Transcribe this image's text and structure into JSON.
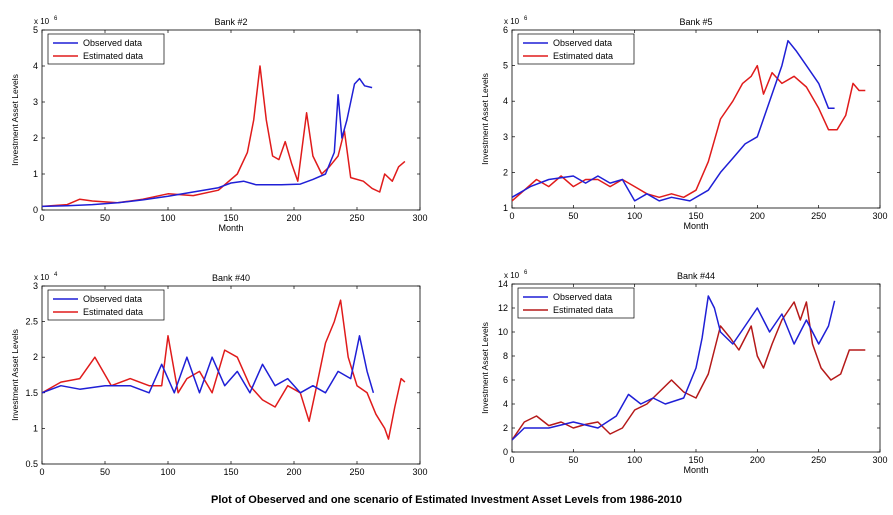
{
  "figure_caption": "Plot of Obeserved and one scenario of Estimated Investment Asset Levels from 1986-2010",
  "colors": {
    "observed": "#1f1fd6",
    "estimated": "#e01b1b",
    "axes": "#000000"
  },
  "chart_data": [
    {
      "type": "line",
      "title": "Bank #2",
      "xlabel": "Month",
      "ylabel": "Investment Asset Levels",
      "exponent_label": "x 10",
      "exponent_power": "6",
      "xlim": [
        0,
        300
      ],
      "ylim": [
        0,
        5
      ],
      "xticks": [
        0,
        50,
        100,
        150,
        200,
        250,
        300
      ],
      "yticks": [
        0,
        1,
        2,
        3,
        4,
        5
      ],
      "legend": "top-left",
      "series": [
        {
          "name": "Observed data",
          "color": "#1f1fd6",
          "points": [
            [
              0,
              0.1
            ],
            [
              20,
              0.12
            ],
            [
              40,
              0.15
            ],
            [
              60,
              0.2
            ],
            [
              80,
              0.28
            ],
            [
              100,
              0.38
            ],
            [
              120,
              0.5
            ],
            [
              140,
              0.62
            ],
            [
              150,
              0.75
            ],
            [
              160,
              0.8
            ],
            [
              170,
              0.7
            ],
            [
              190,
              0.7
            ],
            [
              205,
              0.72
            ],
            [
              215,
              0.85
            ],
            [
              225,
              1.0
            ],
            [
              232,
              1.6
            ],
            [
              235,
              3.2
            ],
            [
              238,
              2.0
            ],
            [
              242,
              2.5
            ],
            [
              248,
              3.5
            ],
            [
              252,
              3.65
            ],
            [
              256,
              3.45
            ],
            [
              262,
              3.4
            ]
          ]
        },
        {
          "name": "Estimated data",
          "color": "#e01b1b",
          "points": [
            [
              0,
              0.1
            ],
            [
              20,
              0.15
            ],
            [
              30,
              0.3
            ],
            [
              40,
              0.25
            ],
            [
              60,
              0.2
            ],
            [
              80,
              0.3
            ],
            [
              100,
              0.45
            ],
            [
              120,
              0.4
            ],
            [
              140,
              0.55
            ],
            [
              155,
              1.0
            ],
            [
              163,
              1.6
            ],
            [
              168,
              2.5
            ],
            [
              173,
              4.0
            ],
            [
              178,
              2.5
            ],
            [
              183,
              1.5
            ],
            [
              188,
              1.4
            ],
            [
              193,
              1.9
            ],
            [
              198,
              1.3
            ],
            [
              203,
              0.8
            ],
            [
              210,
              2.7
            ],
            [
              215,
              1.5
            ],
            [
              222,
              1.0
            ],
            [
              228,
              1.2
            ],
            [
              235,
              1.5
            ],
            [
              240,
              2.2
            ],
            [
              245,
              0.9
            ],
            [
              255,
              0.8
            ],
            [
              262,
              0.6
            ],
            [
              268,
              0.5
            ],
            [
              272,
              1.0
            ],
            [
              278,
              0.8
            ],
            [
              283,
              1.2
            ],
            [
              288,
              1.35
            ]
          ]
        }
      ]
    },
    {
      "type": "line",
      "title": "Bank #5",
      "xlabel": "Month",
      "ylabel": "Investment Asset Levels",
      "exponent_label": "x 10",
      "exponent_power": "6",
      "xlim": [
        0,
        300
      ],
      "ylim": [
        1,
        6
      ],
      "xticks": [
        0,
        50,
        100,
        150,
        200,
        250,
        300
      ],
      "yticks": [
        1,
        2,
        3,
        4,
        5,
        6
      ],
      "legend": "top-left",
      "series": [
        {
          "name": "Observed data",
          "color": "#1f1fd6",
          "points": [
            [
              0,
              1.3
            ],
            [
              15,
              1.6
            ],
            [
              30,
              1.8
            ],
            [
              50,
              1.9
            ],
            [
              60,
              1.7
            ],
            [
              70,
              1.9
            ],
            [
              80,
              1.7
            ],
            [
              90,
              1.8
            ],
            [
              100,
              1.2
            ],
            [
              110,
              1.4
            ],
            [
              120,
              1.2
            ],
            [
              130,
              1.3
            ],
            [
              145,
              1.2
            ],
            [
              160,
              1.5
            ],
            [
              170,
              2.0
            ],
            [
              180,
              2.4
            ],
            [
              190,
              2.8
            ],
            [
              200,
              3.0
            ],
            [
              210,
              4.0
            ],
            [
              220,
              5.0
            ],
            [
              225,
              5.7
            ],
            [
              232,
              5.4
            ],
            [
              240,
              5.0
            ],
            [
              250,
              4.5
            ],
            [
              258,
              3.8
            ],
            [
              263,
              3.8
            ]
          ]
        },
        {
          "name": "Estimated data",
          "color": "#e01b1b",
          "points": [
            [
              0,
              1.2
            ],
            [
              10,
              1.5
            ],
            [
              20,
              1.8
            ],
            [
              30,
              1.6
            ],
            [
              40,
              1.9
            ],
            [
              50,
              1.6
            ],
            [
              60,
              1.8
            ],
            [
              70,
              1.8
            ],
            [
              80,
              1.6
            ],
            [
              90,
              1.8
            ],
            [
              100,
              1.6
            ],
            [
              110,
              1.4
            ],
            [
              120,
              1.3
            ],
            [
              130,
              1.4
            ],
            [
              140,
              1.3
            ],
            [
              150,
              1.5
            ],
            [
              160,
              2.3
            ],
            [
              170,
              3.5
            ],
            [
              180,
              4.0
            ],
            [
              188,
              4.5
            ],
            [
              195,
              4.7
            ],
            [
              200,
              5.0
            ],
            [
              205,
              4.2
            ],
            [
              212,
              4.8
            ],
            [
              220,
              4.5
            ],
            [
              230,
              4.7
            ],
            [
              240,
              4.4
            ],
            [
              250,
              3.8
            ],
            [
              258,
              3.2
            ],
            [
              265,
              3.2
            ],
            [
              272,
              3.6
            ],
            [
              278,
              4.5
            ],
            [
              283,
              4.3
            ],
            [
              288,
              4.3
            ]
          ]
        }
      ]
    },
    {
      "type": "line",
      "title": "Bank #40",
      "xlabel": "",
      "ylabel": "Investment Asset Levels",
      "exponent_label": "x 10",
      "exponent_power": "4",
      "xlim": [
        0,
        300
      ],
      "ylim": [
        0.5,
        3
      ],
      "xticks": [
        0,
        50,
        100,
        150,
        200,
        250,
        300
      ],
      "yticks": [
        0.5,
        1,
        1.5,
        2,
        2.5,
        3
      ],
      "legend": "top-left",
      "series": [
        {
          "name": "Observed data",
          "color": "#1f1fd6",
          "points": [
            [
              0,
              1.5
            ],
            [
              15,
              1.6
            ],
            [
              30,
              1.55
            ],
            [
              50,
              1.6
            ],
            [
              70,
              1.6
            ],
            [
              85,
              1.5
            ],
            [
              95,
              1.9
            ],
            [
              105,
              1.5
            ],
            [
              115,
              2.0
            ],
            [
              125,
              1.5
            ],
            [
              135,
              2.0
            ],
            [
              145,
              1.6
            ],
            [
              155,
              1.8
            ],
            [
              165,
              1.5
            ],
            [
              175,
              1.9
            ],
            [
              185,
              1.6
            ],
            [
              195,
              1.7
            ],
            [
              205,
              1.5
            ],
            [
              215,
              1.6
            ],
            [
              225,
              1.5
            ],
            [
              235,
              1.8
            ],
            [
              245,
              1.7
            ],
            [
              252,
              2.3
            ],
            [
              258,
              1.8
            ],
            [
              263,
              1.5
            ]
          ]
        },
        {
          "name": "Estimated data",
          "color": "#e01b1b",
          "points": [
            [
              0,
              1.5
            ],
            [
              15,
              1.65
            ],
            [
              30,
              1.7
            ],
            [
              42,
              2.0
            ],
            [
              55,
              1.6
            ],
            [
              70,
              1.7
            ],
            [
              85,
              1.6
            ],
            [
              95,
              1.6
            ],
            [
              100,
              2.3
            ],
            [
              108,
              1.5
            ],
            [
              115,
              1.7
            ],
            [
              125,
              1.8
            ],
            [
              135,
              1.5
            ],
            [
              145,
              2.1
            ],
            [
              155,
              2.0
            ],
            [
              165,
              1.6
            ],
            [
              175,
              1.4
            ],
            [
              185,
              1.3
            ],
            [
              195,
              1.6
            ],
            [
              205,
              1.5
            ],
            [
              212,
              1.1
            ],
            [
              218,
              1.6
            ],
            [
              225,
              2.2
            ],
            [
              232,
              2.5
            ],
            [
              237,
              2.8
            ],
            [
              243,
              2.0
            ],
            [
              250,
              1.6
            ],
            [
              258,
              1.5
            ],
            [
              265,
              1.2
            ],
            [
              272,
              1.0
            ],
            [
              275,
              0.85
            ],
            [
              280,
              1.3
            ],
            [
              285,
              1.7
            ],
            [
              288,
              1.65
            ]
          ]
        }
      ]
    },
    {
      "type": "line",
      "title": "Bank #44",
      "xlabel": "Month",
      "ylabel": "Investment Asset Levels",
      "exponent_label": "x 10",
      "exponent_power": "6",
      "xlim": [
        0,
        300
      ],
      "ylim": [
        0,
        14
      ],
      "xticks": [
        0,
        50,
        100,
        150,
        200,
        250,
        300
      ],
      "yticks": [
        0,
        2,
        4,
        6,
        8,
        10,
        12,
        14
      ],
      "legend": "top-left",
      "series": [
        {
          "name": "Observed data",
          "color": "#1f1fd6",
          "points": [
            [
              0,
              1.0
            ],
            [
              10,
              2.0
            ],
            [
              30,
              2.0
            ],
            [
              50,
              2.5
            ],
            [
              70,
              2.0
            ],
            [
              85,
              3.0
            ],
            [
              95,
              4.8
            ],
            [
              105,
              4.0
            ],
            [
              115,
              4.5
            ],
            [
              125,
              4.0
            ],
            [
              140,
              4.5
            ],
            [
              150,
              7.0
            ],
            [
              155,
              9.5
            ],
            [
              160,
              13.0
            ],
            [
              165,
              12.0
            ],
            [
              170,
              10.0
            ],
            [
              180,
              9.0
            ],
            [
              190,
              10.5
            ],
            [
              200,
              12.0
            ],
            [
              210,
              10.0
            ],
            [
              220,
              11.5
            ],
            [
              230,
              9.0
            ],
            [
              240,
              11.0
            ],
            [
              250,
              9.0
            ],
            [
              258,
              10.5
            ],
            [
              263,
              12.6
            ]
          ]
        },
        {
          "name": "Estimated data",
          "color": "#b51919",
          "points": [
            [
              0,
              1.0
            ],
            [
              10,
              2.5
            ],
            [
              20,
              3.0
            ],
            [
              30,
              2.2
            ],
            [
              40,
              2.5
            ],
            [
              50,
              2.0
            ],
            [
              60,
              2.3
            ],
            [
              70,
              2.5
            ],
            [
              80,
              1.5
            ],
            [
              90,
              2.0
            ],
            [
              100,
              3.5
            ],
            [
              110,
              4.0
            ],
            [
              120,
              5.0
            ],
            [
              130,
              6.0
            ],
            [
              140,
              5.0
            ],
            [
              150,
              4.5
            ],
            [
              160,
              6.5
            ],
            [
              170,
              10.5
            ],
            [
              178,
              9.5
            ],
            [
              185,
              8.5
            ],
            [
              195,
              10.5
            ],
            [
              200,
              8.0
            ],
            [
              205,
              7.0
            ],
            [
              212,
              9.0
            ],
            [
              220,
              11.0
            ],
            [
              230,
              12.5
            ],
            [
              235,
              11.0
            ],
            [
              240,
              12.5
            ],
            [
              245,
              9.0
            ],
            [
              252,
              7.0
            ],
            [
              260,
              6.0
            ],
            [
              268,
              6.5
            ],
            [
              275,
              8.5
            ],
            [
              281,
              8.5
            ],
            [
              288,
              8.5
            ]
          ]
        }
      ]
    }
  ]
}
